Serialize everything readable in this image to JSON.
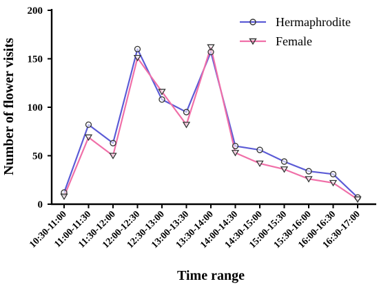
{
  "chart_data": {
    "type": "line",
    "title": "",
    "xlabel": "Time range",
    "ylabel": "Number of flower visits",
    "ylim": [
      0,
      200
    ],
    "yticks": [
      0,
      50,
      100,
      150,
      200
    ],
    "grid": false,
    "legend_position": "top-right",
    "categories": [
      "10:30-11:00",
      "11:00-11:30",
      "11:30-12:00",
      "12:00-12:30",
      "12:30-13:00",
      "13:00-13:30",
      "13:30-14:00",
      "14:00-14:30",
      "14:30-15:00",
      "15:00-15:30",
      "15:30-16:00",
      "16:00-16:30",
      "16:30-17:00"
    ],
    "series": [
      {
        "name": "Hermaphrodite",
        "color": "#5b5bd6",
        "marker": "circle",
        "values": [
          12,
          82,
          63,
          160,
          108,
          95,
          157,
          60,
          56,
          44,
          34,
          31,
          7
        ]
      },
      {
        "name": "Female",
        "color": "#f06fa8",
        "marker": "triangle-down",
        "values": [
          8,
          69,
          50,
          151,
          116,
          82,
          162,
          53,
          42,
          36,
          26,
          22,
          5
        ]
      }
    ]
  }
}
